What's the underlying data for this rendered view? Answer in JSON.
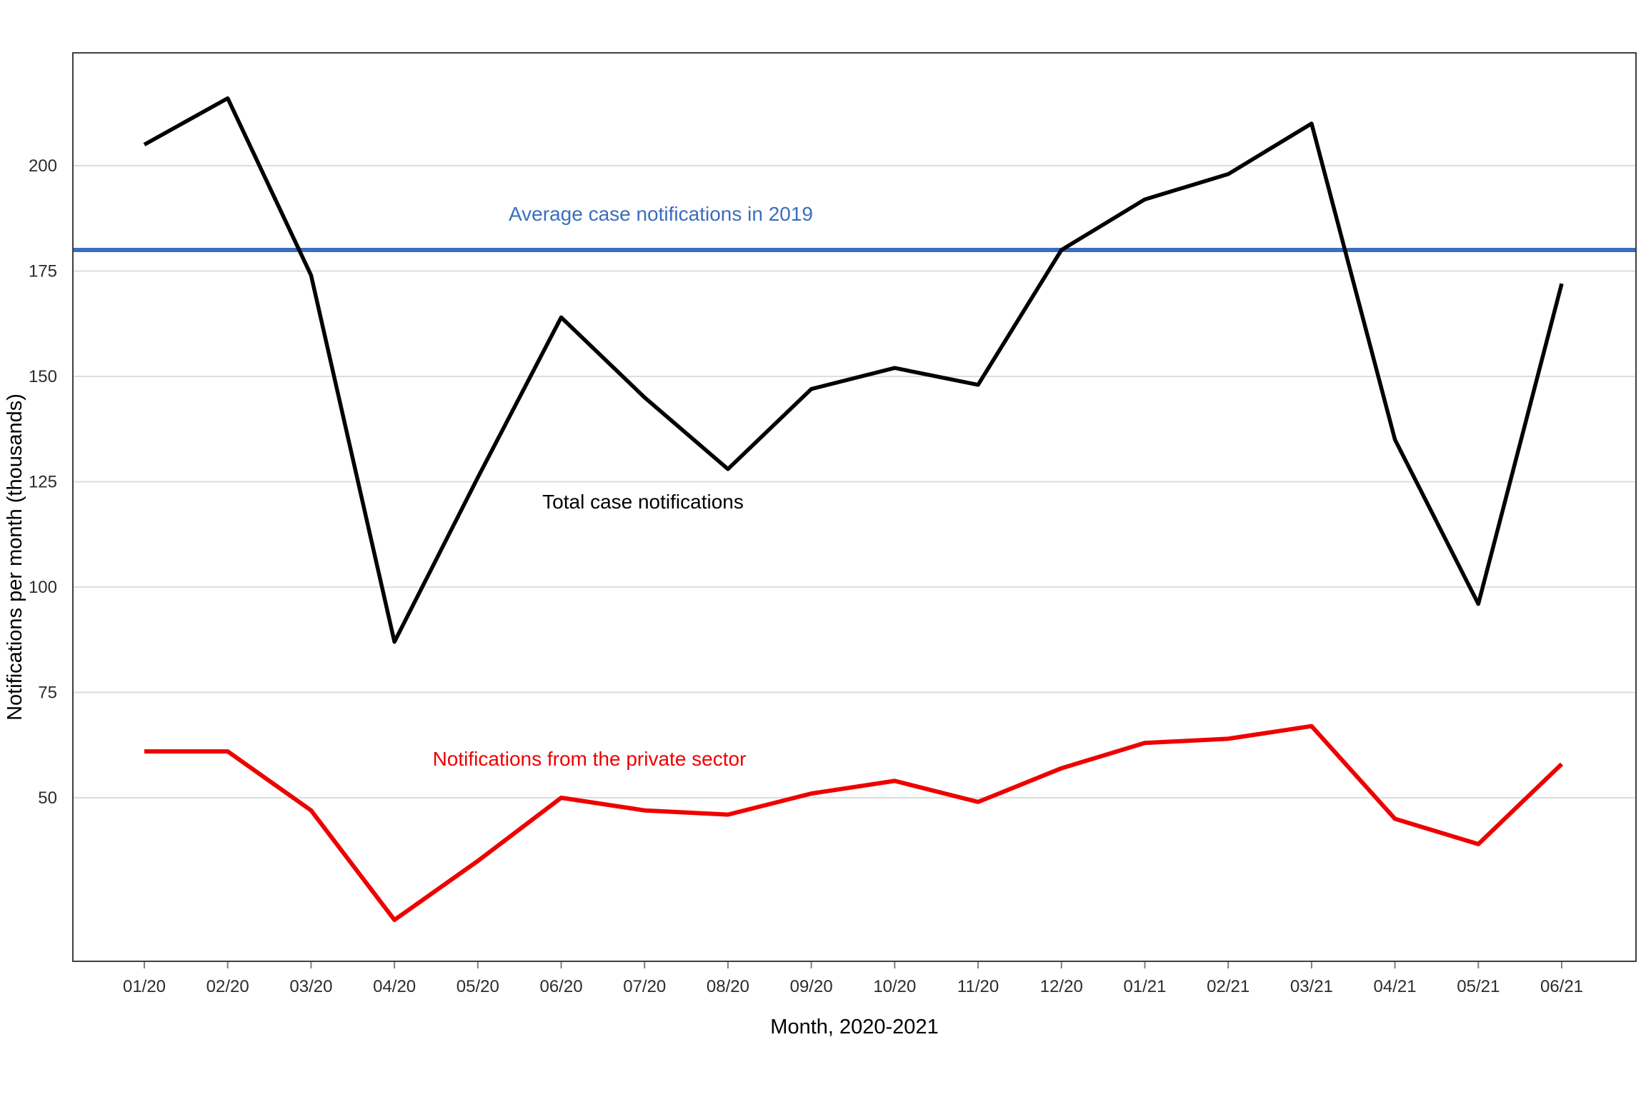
{
  "chart_data": {
    "type": "line",
    "title": "",
    "xlabel": "Month, 2020-2021",
    "ylabel": "Notifications per month (thousands)",
    "categories": [
      "01/20",
      "02/20",
      "03/20",
      "04/20",
      "05/20",
      "06/20",
      "07/20",
      "08/20",
      "09/20",
      "10/20",
      "11/20",
      "12/20",
      "01/21",
      "02/21",
      "03/21",
      "04/21",
      "05/21",
      "06/21"
    ],
    "series": [
      {
        "name": "Total case notifications",
        "color": "#000000",
        "values": [
          205,
          216,
          174,
          87,
          126,
          164,
          145,
          128,
          147,
          152,
          148,
          180,
          192,
          198,
          210,
          135,
          96,
          172
        ]
      },
      {
        "name": "Notifications from the private sector",
        "color": "#EE0000",
        "values": [
          61,
          61,
          47,
          21,
          35,
          50,
          47,
          46,
          51,
          54,
          49,
          57,
          63,
          64,
          67,
          45,
          39,
          58
        ]
      }
    ],
    "reference_line": {
      "value": 180,
      "label": "Average case notifications in 2019",
      "color": "#3A6EBE"
    },
    "y_ticks": [
      50,
      75,
      100,
      125,
      150,
      175,
      200
    ],
    "y_range": [
      11,
      227
    ],
    "grid": "horizontal-only",
    "legend": "inline-annotations",
    "gridline_color": "#D8D8D8",
    "border_color": "#3F3F3F",
    "tick_color": "#7F7F7F"
  }
}
